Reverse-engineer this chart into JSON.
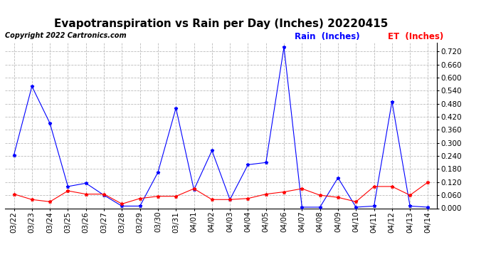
{
  "title": "Evapotranspiration vs Rain per Day (Inches) 20220415",
  "copyright": "Copyright 2022 Cartronics.com",
  "legend_rain": "Rain  (Inches)",
  "legend_et": "ET  (Inches)",
  "dates": [
    "03/22",
    "03/23",
    "03/24",
    "03/25",
    "03/26",
    "03/27",
    "03/28",
    "03/29",
    "03/30",
    "03/31",
    "04/01",
    "04/02",
    "04/03",
    "04/04",
    "04/05",
    "04/06",
    "04/07",
    "04/08",
    "04/09",
    "04/10",
    "04/11",
    "04/12",
    "04/13",
    "04/14"
  ],
  "rain": [
    0.245,
    0.56,
    0.39,
    0.1,
    0.115,
    0.06,
    0.01,
    0.01,
    0.165,
    0.46,
    0.085,
    0.265,
    0.04,
    0.2,
    0.21,
    0.74,
    0.005,
    0.005,
    0.14,
    0.005,
    0.01,
    0.49,
    0.01,
    0.005
  ],
  "et": [
    0.065,
    0.04,
    0.03,
    0.08,
    0.065,
    0.065,
    0.02,
    0.045,
    0.055,
    0.055,
    0.09,
    0.04,
    0.04,
    0.045,
    0.065,
    0.075,
    0.09,
    0.06,
    0.05,
    0.03,
    0.1,
    0.1,
    0.06,
    0.12
  ],
  "rain_color": "#0000ff",
  "et_color": "#ff0000",
  "bg_color": "#ffffff",
  "grid_color": "#bbbbbb",
  "ylim_min": 0.0,
  "ylim_max": 0.76,
  "yticks": [
    0.0,
    0.06,
    0.12,
    0.18,
    0.24,
    0.3,
    0.36,
    0.42,
    0.48,
    0.54,
    0.6,
    0.66,
    0.72
  ],
  "title_fontsize": 11,
  "copyright_fontsize": 7,
  "legend_fontsize": 8.5,
  "tick_fontsize": 7.5
}
